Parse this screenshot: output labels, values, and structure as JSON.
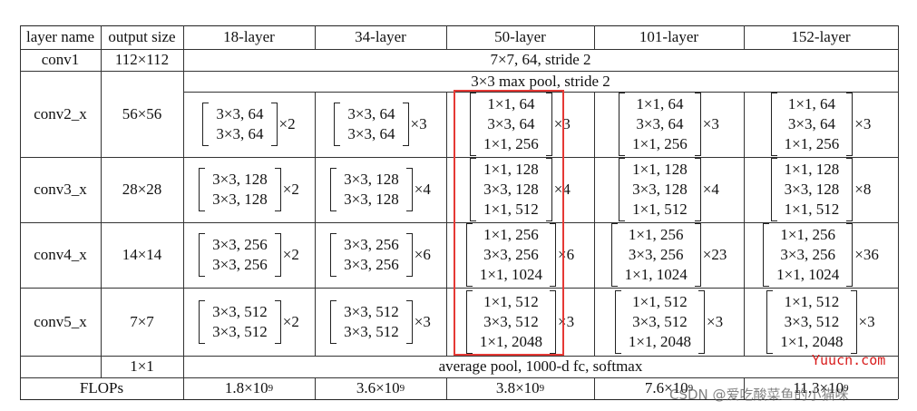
{
  "headers": [
    "layer name",
    "output size",
    "18-layer",
    "34-layer",
    "50-layer",
    "101-layer",
    "152-layer"
  ],
  "rows": [
    {
      "name": "conv1",
      "size": "112×112",
      "span": "7×7, 64, stride 2"
    },
    {
      "name": "conv2_x",
      "size": "56×56",
      "pool": "3×3 max pool, stride 2",
      "cells": [
        {
          "lines": [
            "3×3, 64",
            "3×3, 64"
          ],
          "mult": "×2"
        },
        {
          "lines": [
            "3×3, 64",
            "3×3, 64"
          ],
          "mult": "×3"
        },
        {
          "lines": [
            "1×1, 64",
            "3×3, 64",
            "1×1, 256"
          ],
          "mult": "×3"
        },
        {
          "lines": [
            "1×1, 64",
            "3×3, 64",
            "1×1, 256"
          ],
          "mult": "×3"
        },
        {
          "lines": [
            "1×1, 64",
            "3×3, 64",
            "1×1, 256"
          ],
          "mult": "×3"
        }
      ]
    },
    {
      "name": "conv3_x",
      "size": "28×28",
      "cells": [
        {
          "lines": [
            "3×3, 128",
            "3×3, 128"
          ],
          "mult": "×2"
        },
        {
          "lines": [
            "3×3, 128",
            "3×3, 128"
          ],
          "mult": "×4"
        },
        {
          "lines": [
            "1×1, 128",
            "3×3, 128",
            "1×1, 512"
          ],
          "mult": "×4"
        },
        {
          "lines": [
            "1×1, 128",
            "3×3, 128",
            "1×1, 512"
          ],
          "mult": "×4"
        },
        {
          "lines": [
            "1×1, 128",
            "3×3, 128",
            "1×1, 512"
          ],
          "mult": "×8"
        }
      ]
    },
    {
      "name": "conv4_x",
      "size": "14×14",
      "cells": [
        {
          "lines": [
            "3×3, 256",
            "3×3, 256"
          ],
          "mult": "×2"
        },
        {
          "lines": [
            "3×3, 256",
            "3×3, 256"
          ],
          "mult": "×6"
        },
        {
          "lines": [
            "1×1, 256",
            "3×3, 256",
            "1×1, 1024"
          ],
          "mult": "×6"
        },
        {
          "lines": [
            "1×1, 256",
            "3×3, 256",
            "1×1, 1024"
          ],
          "mult": "×23"
        },
        {
          "lines": [
            "1×1, 256",
            "3×3, 256",
            "1×1, 1024"
          ],
          "mult": "×36"
        }
      ]
    },
    {
      "name": "conv5_x",
      "size": "7×7",
      "cells": [
        {
          "lines": [
            "3×3, 512",
            "3×3, 512"
          ],
          "mult": "×2"
        },
        {
          "lines": [
            "3×3, 512",
            "3×3, 512"
          ],
          "mult": "×3"
        },
        {
          "lines": [
            "1×1, 512",
            "3×3, 512",
            "1×1, 2048"
          ],
          "mult": "×3"
        },
        {
          "lines": [
            "1×1, 512",
            "3×3, 512",
            "1×1, 2048"
          ],
          "mult": "×3"
        },
        {
          "lines": [
            "1×1, 512",
            "3×3, 512",
            "1×1, 2048"
          ],
          "mult": "×3"
        }
      ]
    },
    {
      "name": "",
      "size": "1×1",
      "span": "average pool, 1000-d fc, softmax"
    }
  ],
  "flops": {
    "label": "FLOPs",
    "base": [
      "1.8×10",
      "3.6×10",
      "3.8×10",
      "7.6×10",
      "11.3×10"
    ],
    "exp": "9"
  },
  "highlight_color": "#e53935",
  "watermarks": {
    "site": "Yuucn.com",
    "author": "CSDN @爱吃酸菜鱼的小猫咪"
  }
}
